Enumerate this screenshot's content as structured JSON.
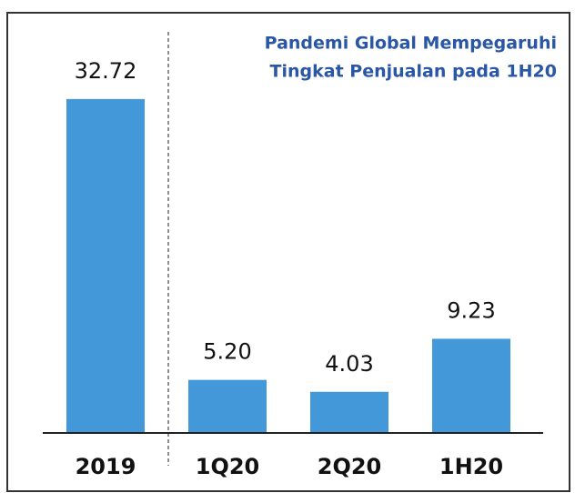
{
  "chart_data": {
    "type": "bar",
    "title": [
      "Pandemi Global Mempegaruhi",
      "Tingkat Penjualan pada 1H20"
    ],
    "categories": [
      "2019",
      "1Q20",
      "2Q20",
      "1H20"
    ],
    "values": [
      32.72,
      5.2,
      4.03,
      9.23
    ],
    "value_labels": [
      "32.72",
      "5.20",
      "4.03",
      "9.23"
    ],
    "color": "#4298d8"
  }
}
